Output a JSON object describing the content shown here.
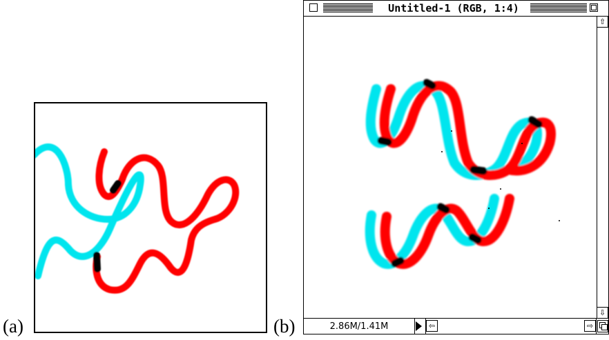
{
  "captions": {
    "a": "(a)",
    "b": "(b)"
  },
  "window": {
    "title": "Untitled-1  (RGB, 1:4)",
    "memory_readout": "2.86M/1.41M"
  },
  "icons": {
    "close": "close-box-icon",
    "zoom": "zoom-box-icon",
    "scroll_up": "arrow-up-icon",
    "scroll_down": "arrow-down-icon",
    "scroll_left": "arrow-left-icon",
    "scroll_right": "arrow-right-icon",
    "grow": "size-box-icon",
    "popup": "popup-triangle-icon"
  },
  "colors": {
    "cyan_stroke": "#00e5ee",
    "red_stroke": "#ff0000",
    "overlap": "#000000"
  }
}
